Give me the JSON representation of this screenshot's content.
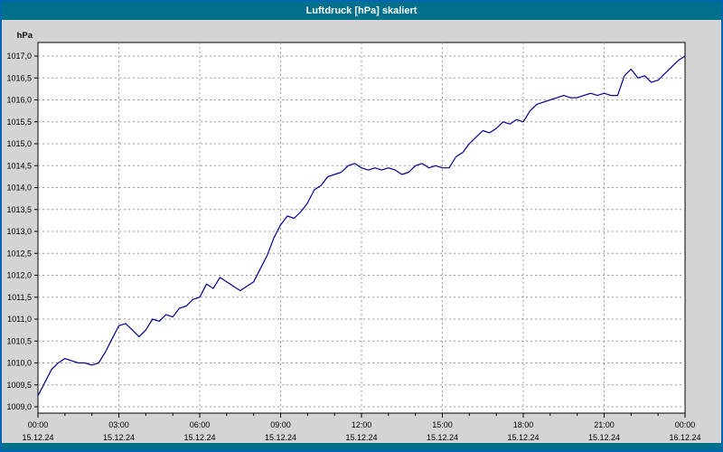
{
  "window": {
    "title": "Luftdruck [hPa] skaliert"
  },
  "colors": {
    "titlebar": "#00708C",
    "border": "#0066B3",
    "chart_background": "#D4D4D4",
    "plot_background": "#FFFFFF",
    "grid": "#989898",
    "axis": "#000000",
    "line": "#00008B",
    "title_text": "#FFFFFF"
  },
  "chart_data": {
    "type": "line",
    "title": "Luftdruck [hPa] skaliert",
    "ylabel": "hPa",
    "xlabel": "",
    "ylim": [
      1009.0,
      1017.0
    ],
    "y_tick_step": 0.5,
    "y_tick_labels": [
      "1017,0",
      "1016,5",
      "1016,0",
      "1015,5",
      "1015,0",
      "1014,5",
      "1014,0",
      "1013,5",
      "1013,0",
      "1012,5",
      "1012,0",
      "1011,5",
      "1011,0",
      "1010,5",
      "1010,0",
      "1009,5",
      "1009,0"
    ],
    "xlim_hours": [
      0,
      24
    ],
    "x_ticks": [
      {
        "hour": 0,
        "time": "00:00",
        "date": "15.12.24"
      },
      {
        "hour": 3,
        "time": "03:00",
        "date": "15.12.24"
      },
      {
        "hour": 6,
        "time": "06:00",
        "date": "15.12.24"
      },
      {
        "hour": 9,
        "time": "09:00",
        "date": "15.12.24"
      },
      {
        "hour": 12,
        "time": "12:00",
        "date": "15.12.24"
      },
      {
        "hour": 15,
        "time": "15:00",
        "date": "15.12.24"
      },
      {
        "hour": 18,
        "time": "18:00",
        "date": "15.12.24"
      },
      {
        "hour": 21,
        "time": "21:00",
        "date": "15.12.24"
      },
      {
        "hour": 24,
        "time": "00:00",
        "date": "16.12.24"
      }
    ],
    "grid": true,
    "legend": "none",
    "series": [
      {
        "name": "Luftdruck",
        "points": [
          [
            0,
            1009.25
          ],
          [
            0.25,
            1009.55
          ],
          [
            0.5,
            1009.85
          ],
          [
            0.75,
            1010
          ],
          [
            1,
            1010.1
          ],
          [
            1.25,
            1010.05
          ],
          [
            1.5,
            1010
          ],
          [
            1.75,
            1010
          ],
          [
            2,
            1009.95
          ],
          [
            2.25,
            1010
          ],
          [
            2.5,
            1010.25
          ],
          [
            2.75,
            1010.55
          ],
          [
            3,
            1010.85
          ],
          [
            3.25,
            1010.9
          ],
          [
            3.5,
            1010.75
          ],
          [
            3.75,
            1010.6
          ],
          [
            4,
            1010.75
          ],
          [
            4.25,
            1011
          ],
          [
            4.5,
            1010.95
          ],
          [
            4.75,
            1011.1
          ],
          [
            5,
            1011.05
          ],
          [
            5.25,
            1011.25
          ],
          [
            5.5,
            1011.3
          ],
          [
            5.75,
            1011.45
          ],
          [
            6,
            1011.5
          ],
          [
            6.25,
            1011.8
          ],
          [
            6.5,
            1011.7
          ],
          [
            6.75,
            1011.95
          ],
          [
            7,
            1011.85
          ],
          [
            7.25,
            1011.75
          ],
          [
            7.5,
            1011.65
          ],
          [
            7.75,
            1011.75
          ],
          [
            8,
            1011.85
          ],
          [
            8.25,
            1012.15
          ],
          [
            8.5,
            1012.45
          ],
          [
            8.75,
            1012.85
          ],
          [
            9,
            1013.15
          ],
          [
            9.25,
            1013.35
          ],
          [
            9.5,
            1013.3
          ],
          [
            9.75,
            1013.45
          ],
          [
            10,
            1013.65
          ],
          [
            10.25,
            1013.95
          ],
          [
            10.5,
            1014.05
          ],
          [
            10.75,
            1014.25
          ],
          [
            11,
            1014.3
          ],
          [
            11.25,
            1014.35
          ],
          [
            11.5,
            1014.5
          ],
          [
            11.75,
            1014.55
          ],
          [
            12,
            1014.45
          ],
          [
            12.25,
            1014.4
          ],
          [
            12.5,
            1014.45
          ],
          [
            12.75,
            1014.4
          ],
          [
            13,
            1014.45
          ],
          [
            13.25,
            1014.4
          ],
          [
            13.5,
            1014.3
          ],
          [
            13.75,
            1014.35
          ],
          [
            14,
            1014.5
          ],
          [
            14.25,
            1014.55
          ],
          [
            14.5,
            1014.45
          ],
          [
            14.75,
            1014.5
          ],
          [
            15,
            1014.45
          ],
          [
            15.25,
            1014.45
          ],
          [
            15.5,
            1014.7
          ],
          [
            15.75,
            1014.8
          ],
          [
            16,
            1015
          ],
          [
            16.25,
            1015.15
          ],
          [
            16.5,
            1015.3
          ],
          [
            16.75,
            1015.25
          ],
          [
            17,
            1015.35
          ],
          [
            17.25,
            1015.5
          ],
          [
            17.5,
            1015.45
          ],
          [
            17.75,
            1015.55
          ],
          [
            18,
            1015.5
          ],
          [
            18.25,
            1015.75
          ],
          [
            18.5,
            1015.9
          ],
          [
            18.75,
            1015.95
          ],
          [
            19,
            1016
          ],
          [
            19.25,
            1016.05
          ],
          [
            19.5,
            1016.1
          ],
          [
            19.75,
            1016.05
          ],
          [
            20,
            1016.05
          ],
          [
            20.25,
            1016.1
          ],
          [
            20.5,
            1016.15
          ],
          [
            20.75,
            1016.1
          ],
          [
            21,
            1016.15
          ],
          [
            21.25,
            1016.1
          ],
          [
            21.5,
            1016.1
          ],
          [
            21.75,
            1016.55
          ],
          [
            22,
            1016.7
          ],
          [
            22.25,
            1016.5
          ],
          [
            22.5,
            1016.55
          ],
          [
            22.75,
            1016.4
          ],
          [
            23,
            1016.45
          ],
          [
            23.25,
            1016.6
          ],
          [
            23.5,
            1016.75
          ],
          [
            23.75,
            1016.9
          ],
          [
            24,
            1017
          ]
        ]
      }
    ]
  }
}
